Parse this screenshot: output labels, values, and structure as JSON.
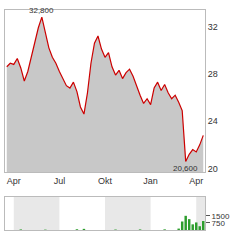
{
  "chart_data": {
    "type": "area",
    "categories": [
      null,
      null,
      "Apr",
      null,
      null,
      null,
      null,
      null,
      null,
      null,
      null,
      null,
      null,
      null,
      null,
      "Jul",
      null,
      null,
      null,
      null,
      null,
      null,
      null,
      null,
      null,
      null,
      null,
      null,
      "Okt",
      null,
      null,
      null,
      null,
      null,
      null,
      null,
      null,
      null,
      null,
      null,
      null,
      "Jan",
      null,
      null,
      null,
      null,
      null,
      null,
      null,
      null,
      null,
      null,
      null,
      null,
      "Apr",
      null,
      null
    ],
    "series": [
      {
        "type": "area",
        "color": "#cc0000",
        "values": [
          28.6,
          28.9,
          28.8,
          29.3,
          28.5,
          27.4,
          28.2,
          29.5,
          30.8,
          31.9,
          32.8,
          31.6,
          30.2,
          29.4,
          28.9,
          28.2,
          27.6,
          27.0,
          26.8,
          27.3,
          26.5,
          25.2,
          24.6,
          26.4,
          28.9,
          30.6,
          31.2,
          30.1,
          29.4,
          29.8,
          28.6,
          27.9,
          28.3,
          27.6,
          28.1,
          28.4,
          27.8,
          26.9,
          26.2,
          25.5,
          25.9,
          25.4,
          26.8,
          27.3,
          26.6,
          27.1,
          26.4,
          25.9,
          26.2,
          25.6,
          24.9,
          20.6,
          21.2,
          21.6,
          21.4,
          22.0,
          22.8
        ]
      },
      {
        "type": "bar",
        "axis": "y2",
        "color": "#2e9e2e",
        "values": [
          0,
          0,
          0,
          0,
          60,
          0,
          0,
          0,
          0,
          0,
          0,
          40,
          0,
          0,
          0,
          0,
          0,
          0,
          0,
          0,
          80,
          0,
          120,
          0,
          0,
          0,
          0,
          0,
          0,
          0,
          0,
          50,
          0,
          0,
          0,
          0,
          0,
          0,
          60,
          0,
          0,
          0,
          0,
          0,
          0,
          70,
          0,
          0,
          0,
          150,
          900,
          1500,
          1150,
          600,
          800,
          400,
          950
        ]
      }
    ],
    "ylim": [
      19.7,
      33.4
    ],
    "yticks": [
      20,
      24,
      28,
      32
    ],
    "y2lim": [
      0,
      3500
    ],
    "y2ticks": [
      750,
      1500
    ],
    "grid": false,
    "annotations": [
      {
        "text": "32,800",
        "index": 10,
        "value": 32.8
      },
      {
        "text": "20,600",
        "index": 51,
        "value": 20.6
      }
    ]
  }
}
